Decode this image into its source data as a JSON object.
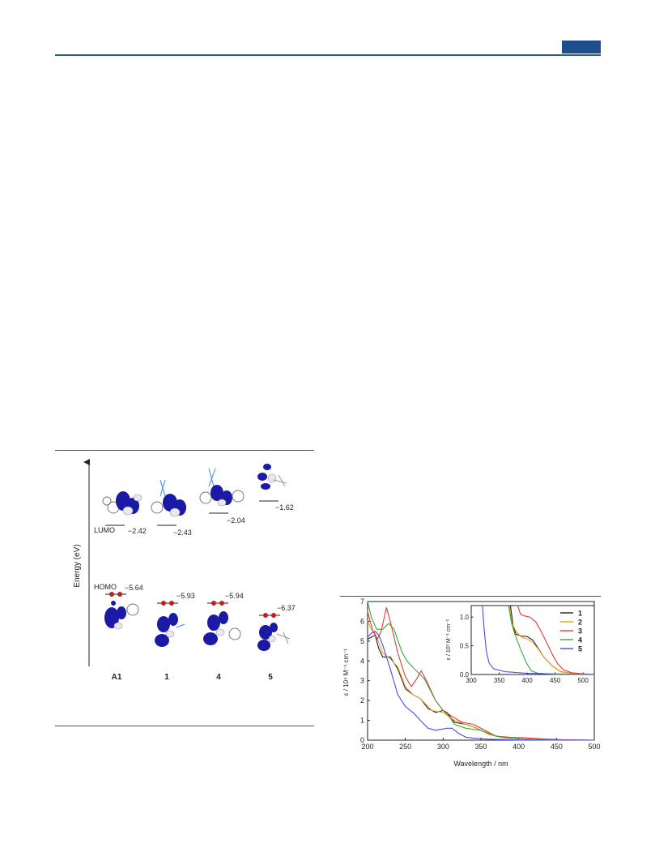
{
  "header": {
    "accent_color": "#1f4e8c",
    "rule_color": "#2c5a86"
  },
  "mo_diagram": {
    "axis_label": "Energy (eV)",
    "lumo_label": "LUMO",
    "homo_label": "HOMO",
    "compounds": [
      {
        "name": "A1",
        "lumo": "−2.42",
        "homo": "−5.64"
      },
      {
        "name": "1",
        "lumo": "−2.43",
        "homo": "−5.93"
      },
      {
        "name": "4",
        "lumo": "−2.04",
        "homo": "−5.94"
      },
      {
        "name": "5",
        "lumo": "−1.62",
        "homo": "−6.37"
      }
    ],
    "orbital_color": "#1a1aa6",
    "electron_color": "#c0201c"
  },
  "chart_data": {
    "type": "line",
    "xlabel": "Wavelength  /  nm",
    "ylabel": "ε  /  10⁴ M⁻¹ cm⁻¹",
    "xlim": [
      200,
      500
    ],
    "ylim": [
      0,
      7
    ],
    "xticks": [
      200,
      250,
      300,
      350,
      400,
      450,
      500
    ],
    "yticks": [
      0,
      1,
      2,
      3,
      4,
      5,
      6,
      7
    ],
    "legend_position": "top-right (inside inset)",
    "series": [
      {
        "name": "1",
        "color": "#222222",
        "points": [
          [
            200,
            5.1
          ],
          [
            210,
            5.3
          ],
          [
            215,
            4.6
          ],
          [
            220,
            4.2
          ],
          [
            230,
            4.2
          ],
          [
            240,
            3.6
          ],
          [
            250,
            2.6
          ],
          [
            260,
            2.3
          ],
          [
            270,
            2.1
          ],
          [
            280,
            1.6
          ],
          [
            290,
            1.4
          ],
          [
            300,
            1.5
          ],
          [
            305,
            1.4
          ],
          [
            315,
            0.9
          ],
          [
            330,
            0.8
          ],
          [
            345,
            0.6
          ],
          [
            360,
            0.3
          ],
          [
            380,
            0.12
          ],
          [
            400,
            0.07
          ],
          [
            430,
            0.03
          ],
          [
            460,
            0.01
          ],
          [
            500,
            0.0
          ]
        ]
      },
      {
        "name": "2",
        "color": "#f0a020",
        "points": [
          [
            200,
            6.0
          ],
          [
            205,
            5.6
          ],
          [
            210,
            5.4
          ],
          [
            220,
            4.4
          ],
          [
            230,
            4.1
          ],
          [
            240,
            3.7
          ],
          [
            250,
            2.7
          ],
          [
            260,
            2.3
          ],
          [
            270,
            2.1
          ],
          [
            285,
            1.5
          ],
          [
            300,
            1.4
          ],
          [
            315,
            1.0
          ],
          [
            330,
            0.8
          ],
          [
            345,
            0.6
          ],
          [
            360,
            0.3
          ],
          [
            380,
            0.12
          ],
          [
            400,
            0.07
          ],
          [
            430,
            0.03
          ],
          [
            460,
            0.01
          ],
          [
            500,
            0.0
          ]
        ]
      },
      {
        "name": "3",
        "color": "#e83a3a",
        "points": [
          [
            200,
            6.5
          ],
          [
            207,
            5.5
          ],
          [
            213,
            5.1
          ],
          [
            218,
            5.5
          ],
          [
            225,
            6.7
          ],
          [
            230,
            6.0
          ],
          [
            240,
            4.4
          ],
          [
            250,
            3.2
          ],
          [
            258,
            2.7
          ],
          [
            265,
            3.1
          ],
          [
            271,
            3.5
          ],
          [
            278,
            3.0
          ],
          [
            290,
            2.0
          ],
          [
            300,
            1.5
          ],
          [
            312,
            1.2
          ],
          [
            325,
            0.9
          ],
          [
            340,
            0.8
          ],
          [
            350,
            0.6
          ],
          [
            370,
            0.2
          ],
          [
            390,
            0.14
          ],
          [
            410,
            0.12
          ],
          [
            430,
            0.07
          ],
          [
            460,
            0.02
          ],
          [
            500,
            0.0
          ]
        ]
      },
      {
        "name": "4",
        "color": "#3aa83a",
        "points": [
          [
            200,
            7.0
          ],
          [
            205,
            6.2
          ],
          [
            212,
            5.6
          ],
          [
            220,
            5.6
          ],
          [
            228,
            5.9
          ],
          [
            235,
            5.6
          ],
          [
            245,
            4.5
          ],
          [
            252,
            4.0
          ],
          [
            262,
            3.6
          ],
          [
            275,
            3.1
          ],
          [
            290,
            2.0
          ],
          [
            300,
            1.5
          ],
          [
            308,
            1.2
          ],
          [
            315,
            0.8
          ],
          [
            330,
            0.6
          ],
          [
            350,
            0.5
          ],
          [
            370,
            0.2
          ],
          [
            390,
            0.1
          ],
          [
            410,
            0.04
          ],
          [
            440,
            0.01
          ],
          [
            500,
            0.0
          ]
        ]
      },
      {
        "name": "5",
        "color": "#4a4ae8",
        "points": [
          [
            200,
            5.2
          ],
          [
            205,
            5.4
          ],
          [
            210,
            5.5
          ],
          [
            215,
            5.3
          ],
          [
            220,
            4.8
          ],
          [
            230,
            3.6
          ],
          [
            240,
            2.3
          ],
          [
            250,
            1.7
          ],
          [
            260,
            1.4
          ],
          [
            270,
            1.0
          ],
          [
            280,
            0.6
          ],
          [
            290,
            0.5
          ],
          [
            305,
            0.6
          ],
          [
            312,
            0.6
          ],
          [
            320,
            0.35
          ],
          [
            330,
            0.15
          ],
          [
            340,
            0.1
          ],
          [
            360,
            0.05
          ],
          [
            400,
            0.01
          ],
          [
            500,
            0.0
          ]
        ]
      }
    ],
    "inset": {
      "xlim": [
        300,
        520
      ],
      "ylim": [
        0,
        1.2
      ],
      "xticks": [
        300,
        350,
        400,
        450,
        500
      ],
      "yticks": [
        "0.0",
        "0.5",
        "1.0"
      ],
      "ylabel": "ε  /  10³ M⁻¹ cm⁻¹",
      "series": [
        {
          "name": "1",
          "color": "#222222",
          "points": [
            [
              370,
              1.25
            ],
            [
              375,
              0.85
            ],
            [
              380,
              0.7
            ],
            [
              390,
              0.67
            ],
            [
              400,
              0.66
            ],
            [
              410,
              0.6
            ],
            [
              420,
              0.45
            ],
            [
              430,
              0.3
            ],
            [
              445,
              0.15
            ],
            [
              460,
              0.05
            ],
            [
              480,
              0.02
            ],
            [
              520,
              0.0
            ]
          ]
        },
        {
          "name": "2",
          "color": "#f0a020",
          "points": [
            [
              368,
              1.25
            ],
            [
              373,
              0.9
            ],
            [
              380,
              0.75
            ],
            [
              390,
              0.65
            ],
            [
              400,
              0.62
            ],
            [
              410,
              0.56
            ],
            [
              420,
              0.44
            ],
            [
              430,
              0.3
            ],
            [
              445,
              0.15
            ],
            [
              460,
              0.05
            ],
            [
              480,
              0.02
            ],
            [
              520,
              0.0
            ]
          ]
        },
        {
          "name": "3",
          "color": "#e83a3a",
          "points": [
            [
              383,
              1.25
            ],
            [
              388,
              1.05
            ],
            [
              395,
              1.02
            ],
            [
              405,
              1.0
            ],
            [
              415,
              0.92
            ],
            [
              425,
              0.75
            ],
            [
              435,
              0.55
            ],
            [
              445,
              0.35
            ],
            [
              455,
              0.18
            ],
            [
              465,
              0.08
            ],
            [
              480,
              0.03
            ],
            [
              500,
              0.01
            ],
            [
              520,
              0.0
            ]
          ]
        },
        {
          "name": "4",
          "color": "#3aa83a",
          "points": [
            [
              367,
              1.25
            ],
            [
              372,
              0.9
            ],
            [
              378,
              0.7
            ],
            [
              385,
              0.52
            ],
            [
              392,
              0.35
            ],
            [
              400,
              0.18
            ],
            [
              408,
              0.06
            ],
            [
              420,
              0.02
            ],
            [
              450,
              0.0
            ],
            [
              520,
              0.0
            ]
          ]
        },
        {
          "name": "5",
          "color": "#4a4ae8",
          "points": [
            [
              320,
              1.25
            ],
            [
              323,
              0.8
            ],
            [
              327,
              0.4
            ],
            [
              332,
              0.2
            ],
            [
              340,
              0.1
            ],
            [
              360,
              0.05
            ],
            [
              400,
              0.02
            ],
            [
              450,
              0.01
            ],
            [
              520,
              0.0
            ]
          ]
        }
      ]
    }
  }
}
